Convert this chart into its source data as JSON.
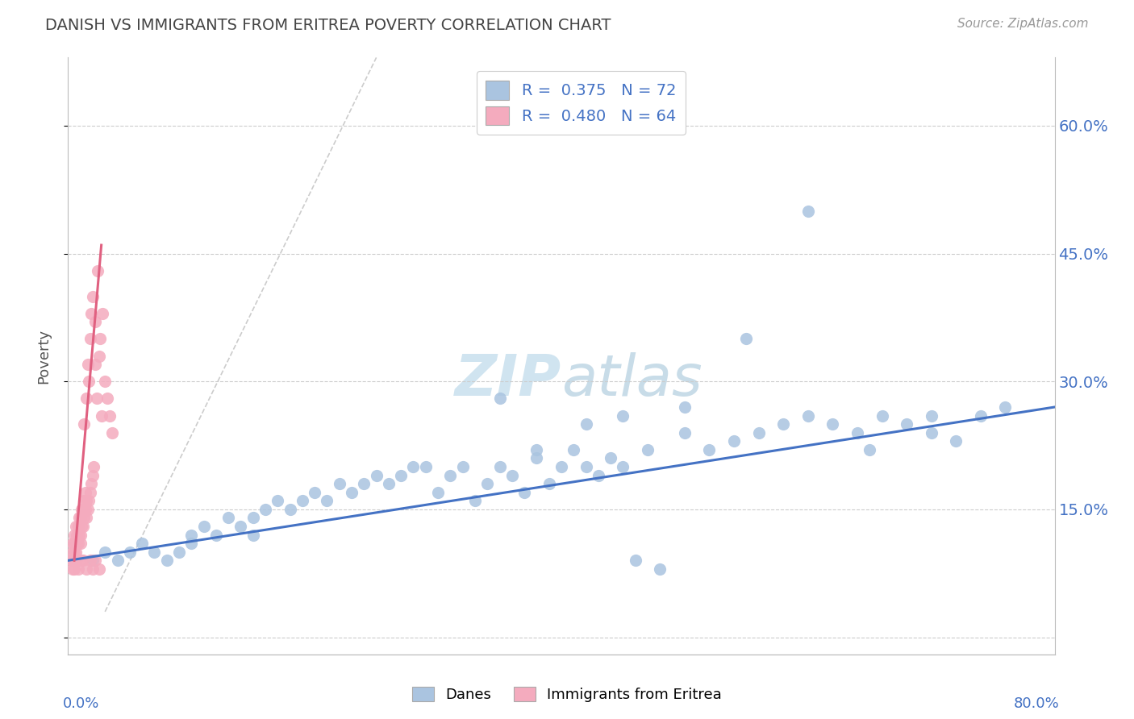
{
  "title": "DANISH VS IMMIGRANTS FROM ERITREA POVERTY CORRELATION CHART",
  "source": "Source: ZipAtlas.com",
  "ylabel": "Poverty",
  "xlim": [
    0.0,
    0.8
  ],
  "ylim": [
    -0.02,
    0.68
  ],
  "yticks": [
    0.0,
    0.15,
    0.3,
    0.45,
    0.6
  ],
  "ytick_labels": [
    "",
    "15.0%",
    "30.0%",
    "45.0%",
    "60.0%"
  ],
  "danes_color": "#aac4e0",
  "eritrea_color": "#f4abbe",
  "danes_line_color": "#4472c4",
  "eritrea_line_color": "#e06080",
  "danes_R": 0.375,
  "danes_N": 72,
  "eritrea_R": 0.48,
  "eritrea_N": 64,
  "background_color": "#ffffff",
  "danes_scatter_x": [
    0.02,
    0.03,
    0.04,
    0.05,
    0.06,
    0.07,
    0.08,
    0.09,
    0.1,
    0.1,
    0.11,
    0.12,
    0.13,
    0.14,
    0.15,
    0.15,
    0.16,
    0.17,
    0.18,
    0.19,
    0.2,
    0.21,
    0.22,
    0.23,
    0.24,
    0.25,
    0.26,
    0.27,
    0.28,
    0.29,
    0.3,
    0.31,
    0.32,
    0.33,
    0.34,
    0.35,
    0.36,
    0.37,
    0.38,
    0.39,
    0.4,
    0.41,
    0.42,
    0.43,
    0.44,
    0.45,
    0.46,
    0.47,
    0.48,
    0.5,
    0.52,
    0.54,
    0.56,
    0.58,
    0.6,
    0.62,
    0.64,
    0.66,
    0.68,
    0.7,
    0.72,
    0.74,
    0.76,
    0.55,
    0.45,
    0.5,
    0.35,
    0.6,
    0.65,
    0.7,
    0.38,
    0.42
  ],
  "danes_scatter_y": [
    0.09,
    0.1,
    0.09,
    0.1,
    0.11,
    0.1,
    0.09,
    0.1,
    0.12,
    0.11,
    0.13,
    0.12,
    0.14,
    0.13,
    0.14,
    0.12,
    0.15,
    0.16,
    0.15,
    0.16,
    0.17,
    0.16,
    0.18,
    0.17,
    0.18,
    0.19,
    0.18,
    0.19,
    0.2,
    0.2,
    0.17,
    0.19,
    0.2,
    0.16,
    0.18,
    0.2,
    0.19,
    0.17,
    0.21,
    0.18,
    0.2,
    0.22,
    0.2,
    0.19,
    0.21,
    0.2,
    0.09,
    0.22,
    0.08,
    0.24,
    0.22,
    0.23,
    0.24,
    0.25,
    0.26,
    0.25,
    0.24,
    0.26,
    0.25,
    0.24,
    0.23,
    0.26,
    0.27,
    0.35,
    0.26,
    0.27,
    0.28,
    0.5,
    0.22,
    0.26,
    0.22,
    0.25
  ],
  "eritrea_scatter_x": [
    0.003,
    0.004,
    0.004,
    0.005,
    0.005,
    0.005,
    0.006,
    0.006,
    0.007,
    0.007,
    0.008,
    0.008,
    0.009,
    0.009,
    0.01,
    0.01,
    0.01,
    0.011,
    0.011,
    0.012,
    0.012,
    0.013,
    0.013,
    0.013,
    0.014,
    0.014,
    0.015,
    0.015,
    0.015,
    0.016,
    0.016,
    0.017,
    0.017,
    0.018,
    0.018,
    0.019,
    0.019,
    0.02,
    0.02,
    0.021,
    0.022,
    0.022,
    0.023,
    0.024,
    0.025,
    0.026,
    0.027,
    0.028,
    0.03,
    0.032,
    0.034,
    0.036,
    0.005,
    0.008,
    0.01,
    0.012,
    0.015,
    0.018,
    0.02,
    0.022,
    0.025,
    0.003,
    0.004,
    0.006
  ],
  "eritrea_scatter_y": [
    0.09,
    0.1,
    0.11,
    0.1,
    0.11,
    0.12,
    0.1,
    0.13,
    0.11,
    0.12,
    0.11,
    0.13,
    0.12,
    0.14,
    0.11,
    0.12,
    0.14,
    0.13,
    0.15,
    0.13,
    0.15,
    0.14,
    0.16,
    0.25,
    0.15,
    0.17,
    0.14,
    0.16,
    0.28,
    0.15,
    0.32,
    0.16,
    0.3,
    0.17,
    0.35,
    0.18,
    0.38,
    0.19,
    0.4,
    0.2,
    0.32,
    0.37,
    0.28,
    0.43,
    0.33,
    0.35,
    0.26,
    0.38,
    0.3,
    0.28,
    0.26,
    0.24,
    0.08,
    0.08,
    0.09,
    0.09,
    0.08,
    0.09,
    0.08,
    0.09,
    0.08,
    0.09,
    0.08,
    0.09
  ],
  "eritrea_line_x": [
    0.005,
    0.027
  ],
  "eritrea_line_y": [
    0.09,
    0.46
  ],
  "danes_line_x": [
    0.0,
    0.8
  ],
  "danes_line_y": [
    0.09,
    0.27
  ]
}
